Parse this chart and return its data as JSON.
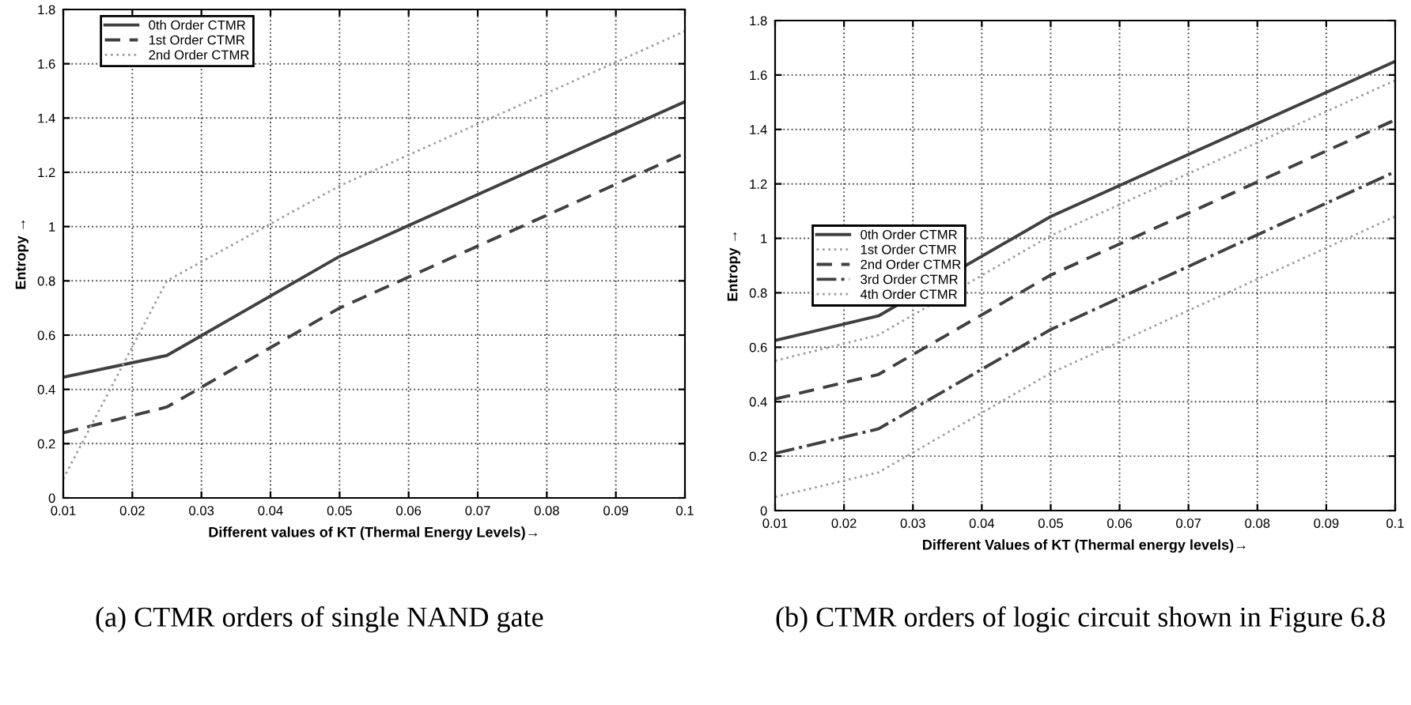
{
  "chart_data": [
    {
      "type": "line",
      "xlabel": "Different values of KT (Thermal Energy Levels)→",
      "ylabel": "Entropy →",
      "x": [
        0.01,
        0.025,
        0.05,
        0.1
      ],
      "series": [
        {
          "name": "0th Order CTMR",
          "color": "#404040",
          "line_style": "solid",
          "values": [
            0.445,
            0.525,
            0.89,
            1.46
          ]
        },
        {
          "name": "1st Order CTMR",
          "color": "#404040",
          "line_style": "dashed",
          "values": [
            0.24,
            0.335,
            0.7,
            1.27
          ]
        },
        {
          "name": "2nd Order CTMR",
          "color": "#a0a0a0",
          "line_style": "dotted",
          "values": [
            0.07,
            0.8,
            1.15,
            1.72
          ]
        }
      ],
      "xlim": [
        0.01,
        0.1
      ],
      "ylim": [
        0,
        1.8
      ],
      "xticks": [
        0.01,
        0.02,
        0.03,
        0.04,
        0.05,
        0.06,
        0.07,
        0.08,
        0.09,
        0.1
      ],
      "yticks": [
        0,
        0.2,
        0.4,
        0.6,
        0.8,
        1,
        1.2,
        1.4,
        1.6,
        1.8
      ],
      "grid": true,
      "legend": "top left",
      "marker": "none",
      "annotations": [
        "(a) CTMR orders of single NAND gate"
      ]
    },
    {
      "type": "line",
      "xlabel": "Different Values of KT (Thermal energy levels)→",
      "ylabel": "Entropy →",
      "x": [
        0.01,
        0.025,
        0.05,
        0.1
      ],
      "series": [
        {
          "name": "0th Order CTMR",
          "color": "#404040",
          "line_style": "solid",
          "values": [
            0.625,
            0.715,
            1.08,
            1.65
          ]
        },
        {
          "name": "1st Order CTMR",
          "color": "#a0a0a0",
          "line_style": "dotted",
          "values": [
            0.55,
            0.645,
            1.01,
            1.58
          ]
        },
        {
          "name": "2nd Order CTMR",
          "color": "#404040",
          "line_style": "dashed",
          "values": [
            0.41,
            0.5,
            0.865,
            1.435
          ]
        },
        {
          "name": "3rd Order CTMR",
          "color": "#404040",
          "line_style": "dashdot",
          "values": [
            0.21,
            0.3,
            0.665,
            1.245
          ]
        },
        {
          "name": "4th Order CTMR",
          "color": "#a0a0a0",
          "line_style": "dotted",
          "values": [
            0.05,
            0.14,
            0.505,
            1.08
          ]
        }
      ],
      "xlim": [
        0.01,
        0.1
      ],
      "ylim": [
        0,
        1.8
      ],
      "xticks": [
        0.01,
        0.02,
        0.03,
        0.04,
        0.05,
        0.06,
        0.07,
        0.08,
        0.09,
        0.1
      ],
      "yticks": [
        0,
        0.2,
        0.4,
        0.6,
        0.8,
        1,
        1.2,
        1.4,
        1.6,
        1.8
      ],
      "grid": true,
      "legend": "center left",
      "marker": "none",
      "annotations": [
        "(b) CTMR orders of logic circuit shown in Figure 6.8"
      ]
    }
  ]
}
